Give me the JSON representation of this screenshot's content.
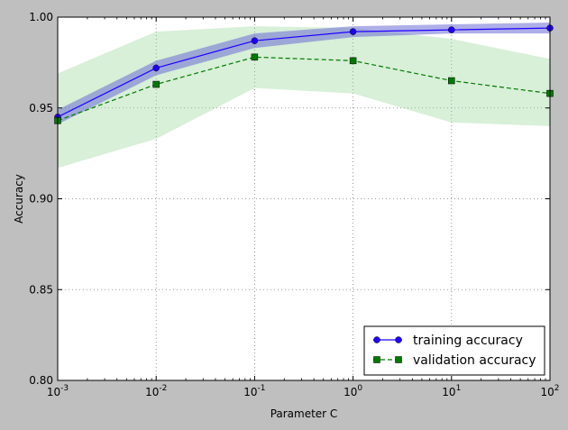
{
  "chart_data": {
    "type": "line",
    "xlabel": "Parameter C",
    "ylabel": "Accuracy",
    "xscale": "log",
    "xlim": [
      0.001,
      100
    ],
    "ylim": [
      0.8,
      1.0
    ],
    "grid": true,
    "legend_position": "lower-right",
    "x": [
      0.001,
      0.01,
      0.1,
      1,
      10,
      100
    ],
    "x_tick_labels": [
      {
        "base": "10",
        "exp": "-3"
      },
      {
        "base": "10",
        "exp": "-2"
      },
      {
        "base": "10",
        "exp": "-1"
      },
      {
        "base": "10",
        "exp": "0"
      },
      {
        "base": "10",
        "exp": "1"
      },
      {
        "base": "10",
        "exp": "2"
      }
    ],
    "y_ticks": [
      0.8,
      0.85,
      0.9,
      0.95,
      1.0
    ],
    "y_tick_labels": [
      "0.80",
      "0.85",
      "0.90",
      "0.95",
      "1.00"
    ],
    "series": [
      {
        "name": "training accuracy",
        "values": [
          0.945,
          0.972,
          0.987,
          0.992,
          0.993,
          0.994
        ],
        "lower": [
          0.941,
          0.968,
          0.983,
          0.989,
          0.991,
          0.991
        ],
        "upper": [
          0.949,
          0.976,
          0.991,
          0.995,
          0.996,
          0.997
        ],
        "color": "#1f00ff",
        "band_color": "#6b6bd6",
        "marker": "circle",
        "linestyle": "solid"
      },
      {
        "name": "validation accuracy",
        "values": [
          0.943,
          0.963,
          0.978,
          0.976,
          0.965,
          0.958
        ],
        "lower": [
          0.917,
          0.933,
          0.961,
          0.958,
          0.942,
          0.94
        ],
        "upper": [
          0.969,
          0.992,
          0.995,
          0.994,
          0.988,
          0.977
        ],
        "color": "#007a00",
        "band_color": "#8fd18f",
        "marker": "square",
        "linestyle": "dashed"
      }
    ]
  }
}
